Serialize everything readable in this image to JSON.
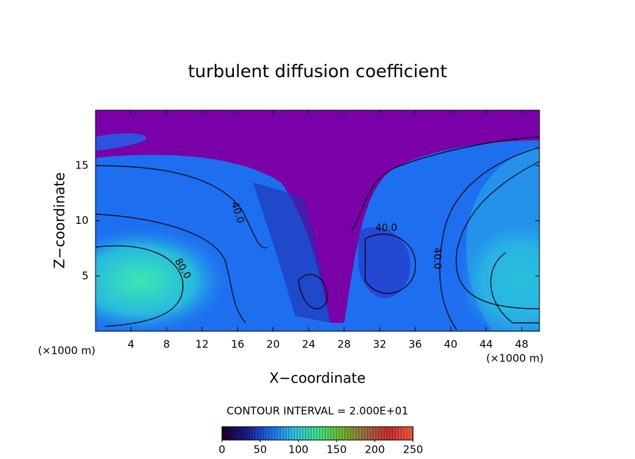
{
  "chart_data": {
    "type": "contour",
    "title": "turbulent diffusion coefficient",
    "x_label": "X−coordinate",
    "y_label": "Z−coordinate",
    "x_unit_left": "(×1000 m)",
    "x_unit_right": "(×1000 m)",
    "xlim": [
      0,
      50
    ],
    "xticks": [
      4,
      8,
      12,
      16,
      20,
      24,
      28,
      32,
      36,
      40,
      44,
      48
    ],
    "ylim": [
      0,
      20
    ],
    "yticks": [
      5,
      10,
      15
    ],
    "contour_interval": "CONTOUR INTERVAL = 2.000E+01",
    "contour_labels": [
      "40.0",
      "80.0",
      "40.0",
      "40.0"
    ],
    "colorbar": {
      "lim": [
        0,
        250
      ],
      "ticks": [
        0,
        50,
        100,
        150,
        200,
        250
      ],
      "colors": [
        "#20002a",
        "#1a1a8a",
        "#1e6cf0",
        "#30c8e8",
        "#40e890",
        "#70c030",
        "#a07040",
        "#d03030",
        "#ff6040"
      ]
    }
  }
}
